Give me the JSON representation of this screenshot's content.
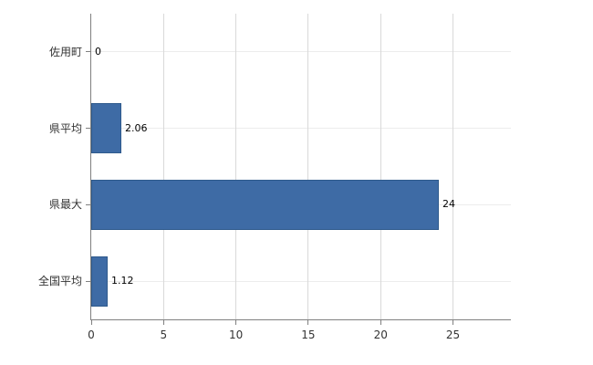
{
  "chart_data": {
    "type": "bar",
    "orientation": "horizontal",
    "title": "",
    "categories": [
      "佐用町",
      "県平均",
      "県最大",
      "全国平均"
    ],
    "values": [
      0,
      2.06,
      24,
      1.12
    ],
    "value_labels": [
      "0",
      "2.06",
      "24",
      "1.12"
    ],
    "x_ticks": [
      0,
      5,
      10,
      15,
      20,
      25
    ],
    "xlim": [
      0,
      29
    ],
    "grid": true,
    "legend": false,
    "colors": {
      "bar_fill": "#3E6BA5",
      "bar_stroke": "#2F5A8C",
      "axis": "#808080",
      "gridline_vertical": "#d9d9d9",
      "gridline_horizontal": "#ececec",
      "text": "#333333"
    }
  }
}
